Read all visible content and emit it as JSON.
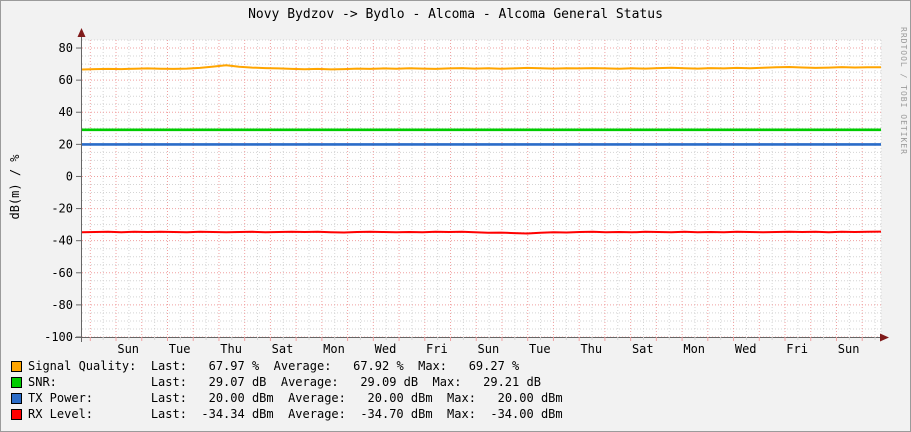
{
  "title": "Novy Bydzov -> Bydlo - Alcoma - Alcoma General Status",
  "watermark": "RRDTOOL / TOBI OETIKER",
  "chart_data": {
    "type": "line",
    "title": "Novy Bydzov -> Bydlo - Alcoma - Alcoma General Status",
    "xlabel": "",
    "ylabel": "dB(m) / %",
    "ylim": [
      -100,
      85
    ],
    "y_ticks": [
      80,
      60,
      40,
      20,
      0,
      -20,
      -40,
      -60,
      -80,
      -100
    ],
    "y_major_step": 20,
    "y_minor_step": 5,
    "x_tick_labels": [
      "Sun",
      "Tue",
      "Thu",
      "Sat",
      "Mon",
      "Wed",
      "Fri",
      "Sun",
      "Tue",
      "Thu",
      "Sat",
      "Mon",
      "Wed",
      "Fri",
      "Sun"
    ],
    "x_span": "approx 31 days, day labels every 2 days, major grid each midnight, minor grid each 12 h",
    "grid": "dotted; major pink, minor gray",
    "legend_position": "bottom-left",
    "colors": {
      "background": "#f2f2f2",
      "canvas": "#ffffff",
      "major_grid": "#f0a0a0",
      "minor_grid": "#d4d4d4",
      "axis": "#666666",
      "arrow": "#7f1a1a",
      "text": "#000000",
      "watermark": "#9a9a9a"
    },
    "series": [
      {
        "name": "Signal Quality",
        "unit": "%",
        "color": "#ffa500",
        "values": [
          66.6,
          66.9,
          67.0,
          66.9,
          67.1,
          67.3,
          67.1,
          67.0,
          67.2,
          67.6,
          68.4,
          69.27,
          68.3,
          67.8,
          67.5,
          67.3,
          67.0,
          66.8,
          67.0,
          66.7,
          66.9,
          67.2,
          67.0,
          67.3,
          67.1,
          67.4,
          67.2,
          67.0,
          67.3,
          67.5,
          67.2,
          67.4,
          67.1,
          67.3,
          67.6,
          67.4,
          67.2,
          67.4,
          67.3,
          67.5,
          67.3,
          67.1,
          67.4,
          67.2,
          67.5,
          67.7,
          67.4,
          67.2,
          67.5,
          67.3,
          67.6,
          67.4,
          67.7,
          68.0,
          68.2,
          67.9,
          67.6,
          67.8,
          68.1,
          67.9,
          68.0,
          67.97
        ]
      },
      {
        "name": "SNR",
        "unit": "dB",
        "color": "#00cc00",
        "values": [
          29.08,
          29.08
        ]
      },
      {
        "name": "TX Power",
        "unit": "dBm",
        "color": "#2a6cc8",
        "values": [
          20.0,
          20.0
        ]
      },
      {
        "name": "RX Level",
        "unit": "dBm",
        "color": "#ff0000",
        "values": [
          -34.8,
          -34.6,
          -34.5,
          -34.7,
          -34.5,
          -34.6,
          -34.4,
          -34.6,
          -34.7,
          -34.5,
          -34.6,
          -34.8,
          -34.6,
          -34.5,
          -34.7,
          -34.6,
          -34.4,
          -34.6,
          -34.5,
          -34.7,
          -34.9,
          -34.6,
          -34.5,
          -34.6,
          -34.8,
          -34.6,
          -34.7,
          -34.5,
          -34.6,
          -34.4,
          -34.7,
          -35.1,
          -35.0,
          -35.3,
          -35.5,
          -35.1,
          -34.8,
          -34.9,
          -34.6,
          -34.5,
          -34.7,
          -34.6,
          -34.8,
          -34.5,
          -34.6,
          -34.7,
          -34.5,
          -34.8,
          -34.6,
          -34.7,
          -34.5,
          -34.6,
          -34.8,
          -34.6,
          -34.4,
          -34.6,
          -34.5,
          -34.7,
          -34.5,
          -34.6,
          -34.5,
          -34.34
        ]
      }
    ]
  },
  "legend": {
    "labels": {
      "last": "Last:",
      "average": "Average:",
      "max": "Max:"
    },
    "series": [
      {
        "name": "Signal Quality:",
        "unit": "%",
        "last": "67.97",
        "average": "67.92",
        "max": "69.27"
      },
      {
        "name": "SNR:",
        "unit": "dB",
        "last": "29.07",
        "average": "29.09",
        "max": "29.21"
      },
      {
        "name": "TX Power:",
        "unit": "dBm",
        "last": "20.00",
        "average": "20.00",
        "max": "20.00"
      },
      {
        "name": "RX Level:",
        "unit": "dBm",
        "last": "-34.34",
        "average": "-34.70",
        "max": "-34.00"
      }
    ]
  }
}
